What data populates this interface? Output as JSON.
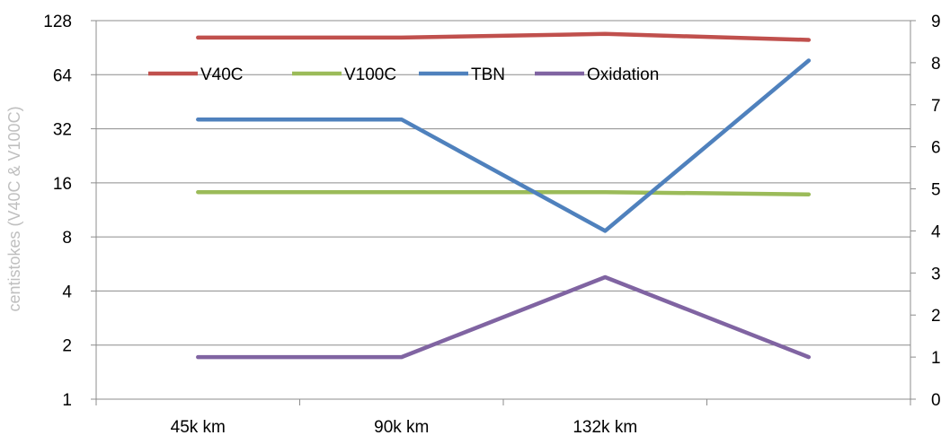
{
  "chart_data": {
    "type": "line",
    "categories": [
      "45k km",
      "90k km",
      "132k km",
      ""
    ],
    "ylabel_left": "centistokes (V40C & V100C)",
    "ylabel_right": "",
    "y_left": {
      "scale": "log2",
      "range": [
        1,
        128
      ],
      "ticks": [
        "1",
        "2",
        "4",
        "8",
        "16",
        "32",
        "64",
        "128"
      ]
    },
    "y_right": {
      "scale": "linear",
      "range": [
        0,
        9
      ],
      "ticks": [
        "0",
        "1",
        "2",
        "3",
        "4",
        "5",
        "6",
        "7",
        "8",
        "9"
      ]
    },
    "grid": "horizontal",
    "legend_position": "top-left inside plot",
    "series": [
      {
        "name": "V40C",
        "axis": "left",
        "color": "#c0504d",
        "values": [
          103,
          103,
          108,
          100
        ]
      },
      {
        "name": "V100C",
        "axis": "left",
        "color": "#9bbb59",
        "values": [
          14.2,
          14.2,
          14.2,
          13.8
        ]
      },
      {
        "name": "TBN",
        "axis": "right",
        "color": "#4f81bd",
        "values": [
          6.65,
          6.65,
          4.0,
          8.05
        ]
      },
      {
        "name": "Oxidation",
        "axis": "right",
        "color": "#8064a2",
        "values": [
          1.0,
          1.0,
          2.9,
          1.0
        ]
      }
    ]
  }
}
